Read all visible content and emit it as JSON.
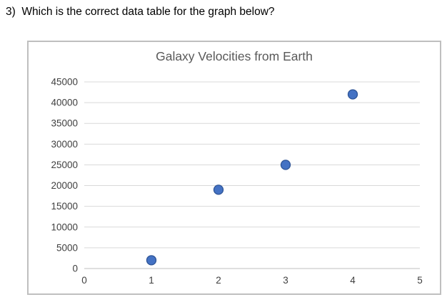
{
  "question": {
    "text": "3)  Which is the correct data table for the graph below?"
  },
  "chart_data": {
    "type": "scatter",
    "title": "Galaxy Velocities from Earth",
    "x": [
      1,
      2,
      3,
      4
    ],
    "y": [
      2000,
      19000,
      25000,
      42000
    ],
    "xlim": [
      0,
      5
    ],
    "ylim": [
      0,
      45000
    ],
    "x_ticks": [
      0,
      1,
      2,
      3,
      4,
      5
    ],
    "y_ticks": [
      0,
      5000,
      10000,
      15000,
      20000,
      25000,
      30000,
      35000,
      40000,
      45000
    ],
    "grid": "horizontal",
    "legend": "none",
    "colors": {
      "point_fill": "#4472c4",
      "point_border": "#2f5597",
      "gridline": "#d9d9d9",
      "axis_line": "#bfbfbf",
      "tick_label": "#404040",
      "title": "#595959",
      "frame_border": "#bfbfbf"
    }
  }
}
